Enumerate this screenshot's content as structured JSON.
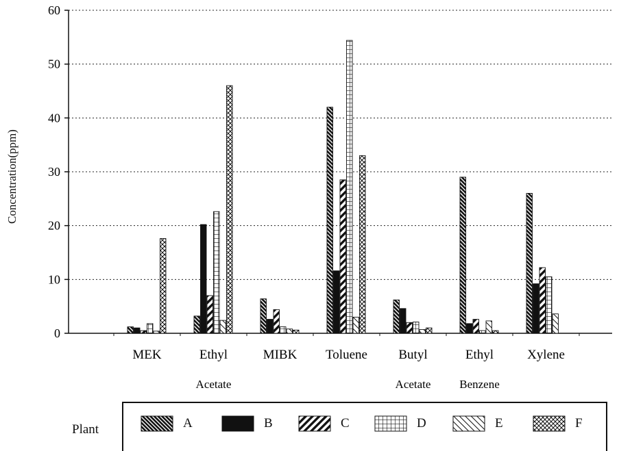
{
  "chart_data": {
    "type": "bar",
    "ylabel": "Concentration(ppm)",
    "xlabel": "",
    "ylim": [
      0,
      60
    ],
    "yticks": [
      0,
      10,
      20,
      30,
      40,
      50,
      60
    ],
    "grid": "horizontal dotted",
    "categories": [
      {
        "line1": "MEK",
        "line2": ""
      },
      {
        "line1": "Ethyl",
        "line2": "Acetate"
      },
      {
        "line1": "MIBK",
        "line2": ""
      },
      {
        "line1": "Toluene",
        "line2": ""
      },
      {
        "line1": "Butyl",
        "line2": "Acetate"
      },
      {
        "line1": "Ethyl",
        "line2": "Benzene"
      },
      {
        "line1": "Xylene",
        "line2": ""
      }
    ],
    "series": [
      {
        "name": "A",
        "pattern": "hatch-dense-diagonal",
        "values": [
          1.2,
          3.2,
          6.4,
          42.0,
          6.2,
          29.0,
          26.0
        ]
      },
      {
        "name": "B",
        "pattern": "solid",
        "values": [
          1.0,
          20.2,
          2.6,
          11.6,
          4.6,
          1.8,
          9.2
        ]
      },
      {
        "name": "C",
        "pattern": "hatch-wide-diagonal",
        "values": [
          0.5,
          7.0,
          4.4,
          28.5,
          2.0,
          2.6,
          12.2
        ]
      },
      {
        "name": "D",
        "pattern": "grid",
        "values": [
          1.8,
          22.6,
          1.2,
          54.4,
          2.1,
          0.5,
          10.5
        ]
      },
      {
        "name": "E",
        "pattern": "hatch-light-diagonal",
        "values": [
          0.4,
          2.4,
          0.8,
          3.0,
          0.7,
          2.3,
          3.6
        ]
      },
      {
        "name": "F",
        "pattern": "crosshatch",
        "values": [
          17.6,
          46.0,
          0.6,
          33.0,
          1.0,
          0.5,
          0.0
        ]
      }
    ]
  },
  "legend": {
    "title": "Plant",
    "items": [
      "A",
      "B",
      "C",
      "D",
      "E",
      "F"
    ]
  }
}
